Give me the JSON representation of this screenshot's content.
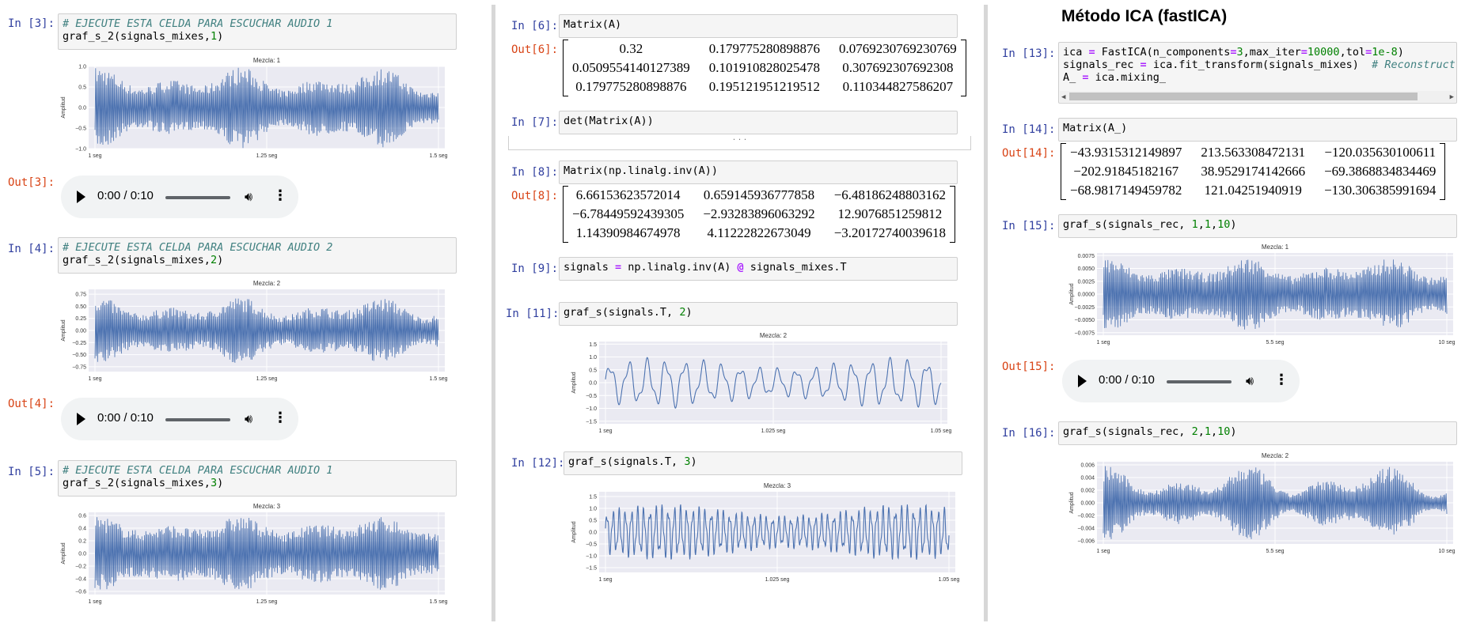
{
  "cells": {
    "c3": {
      "in": "In [3]:",
      "out": "Out[3]:",
      "comment": "# EJECUTE ESTA CELDA PARA ESCUCHAR AUDIO 1",
      "code_a": "graf_s_2(signals_mixes,",
      "arg": "1",
      "code_b": ")"
    },
    "c4": {
      "in": "In [4]:",
      "out": "Out[4]:",
      "comment": "# EJECUTE ESTA CELDA PARA ESCUCHAR AUDIO 2",
      "code_a": "graf_s_2(signals_mixes,",
      "arg": "2",
      "code_b": ")"
    },
    "c5": {
      "in": "In [5]:",
      "comment": "# EJECUTE ESTA CELDA PARA ESCUCHAR AUDIO 1",
      "code_a": "graf_s_2(signals_mixes,",
      "arg": "3",
      "code_b": ")"
    },
    "c6": {
      "in": "In [6]:",
      "out": "Out[6]:",
      "code": "Matrix(A)"
    },
    "c7": {
      "in": "In [7]:",
      "code": "det(Matrix(A))",
      "collapsed": "· · ·"
    },
    "c8": {
      "in": "In [8]:",
      "out": "Out[8]:",
      "code": "Matrix(np.linalg.inv(A))"
    },
    "c9": {
      "in": "In [9]:",
      "code_a": "signals ",
      "eq": "=",
      "code_b": " np.linalg.inv(A) ",
      "at": "@",
      "code_c": " signals_mixes.T"
    },
    "c11": {
      "in": "In [11]:",
      "code_a": "graf_s(signals.T, ",
      "arg": "2",
      "code_b": ")"
    },
    "c12": {
      "in": "In [12]:",
      "code_a": "graf_s(signals.T, ",
      "arg": "3",
      "code_b": ")"
    },
    "c13": {
      "in": "In [13]:",
      "l1_a": "ica ",
      "l1_eq": "=",
      "l1_b": " FastICA(n_components",
      "l1_eq2": "=",
      "l1_n1": "3",
      "l1_c": ",max_iter",
      "l1_eq3": "=",
      "l1_n2": "10000",
      "l1_d": ",tol",
      "l1_eq4": "=",
      "l1_n3": "1e-8",
      "l1_e": ")",
      "l2_a": "signals_rec ",
      "l2_eq": "=",
      "l2_b": " ica.fit_transform(signals_mixes)  ",
      "l2_cm": "# Reconstruct signals",
      "l3_a": "A_ ",
      "l3_eq": "=",
      "l3_b": " ica.mixing_"
    },
    "c14": {
      "in": "In [14]:",
      "out": "Out[14]:",
      "code": "Matrix(A_)"
    },
    "c15": {
      "in": "In [15]:",
      "out": "Out[15]:",
      "code_a": "graf_s(signals_rec, ",
      "a1": "1",
      "s1": ",",
      "a2": "1",
      "s2": ",",
      "a3": "10",
      "code_b": ")"
    },
    "c16": {
      "in": "In [16]:",
      "code_a": "graf_s(signals_rec, ",
      "a1": "2",
      "s1": ",",
      "a2": "1",
      "s2": ",",
      "a3": "10",
      "code_b": ")"
    }
  },
  "section_title": "Método ICA (fastICA)",
  "audio": {
    "time": "0:00 / 0:10",
    "play_icon": "play-icon",
    "volume_icon": "volume-icon",
    "more_icon": "more-vert-icon",
    "progress": 0
  },
  "matrices": {
    "A": [
      [
        "0.32",
        "0.179775280898876",
        "0.0769230769230769"
      ],
      [
        "0.0509554140127389",
        "0.101910828025478",
        "0.307692307692308"
      ],
      [
        "0.179775280898876",
        "0.195121951219512",
        "0.110344827586207"
      ]
    ],
    "invA": [
      [
        "6.66153623572014",
        "0.659145936777858",
        "−6.48186248803162"
      ],
      [
        "−6.78449592439305",
        "−2.93283896063292",
        "12.9076851259812"
      ],
      [
        "1.14390984674978",
        "4.11222822673049",
        "−3.20172740039618"
      ]
    ],
    "A_": [
      [
        "−43.9315312149897",
        "213.563308472131",
        "−120.035630100611"
      ],
      [
        "−202.91845182167",
        "38.9529174142666",
        "−69.3868834834469"
      ],
      [
        "−68.9817149459782",
        "121.04251940919",
        "−130.306385991694"
      ]
    ]
  },
  "colors": {
    "plot_bg": "#eaeaf2",
    "line": "#4c72b0",
    "grid": "#ffffff",
    "in_prompt": "#303f9f",
    "out_prompt": "#d84315"
  },
  "chart_data": [
    {
      "type": "line",
      "title": "Mezcla: 1",
      "ylabel": "Amplitud",
      "yticks": [
        "1.0",
        "0.5",
        "0.0",
        "−0.5",
        "−1.0"
      ],
      "ylim": [
        -1.0,
        1.0
      ],
      "xticks": [
        "1 seg",
        "1.25 seg",
        "1.5 seg"
      ],
      "dense": true,
      "amp": 0.6,
      "amp_range": [
        0.35,
        1.0
      ]
    },
    {
      "type": "line",
      "title": "Mezcla: 2",
      "ylabel": "Amplitud",
      "yticks": [
        "0.75",
        "0.50",
        "0.25",
        "0.00",
        "−0.25",
        "−0.50",
        "−0.75"
      ],
      "ylim": [
        -0.85,
        0.85
      ],
      "xticks": [
        "1 seg",
        "1.25 seg",
        "1.5 seg"
      ],
      "dense": true,
      "amp": 0.42,
      "amp_range": [
        0.25,
        0.7
      ]
    },
    {
      "type": "line",
      "title": "Mezcla: 3",
      "ylabel": "Amplitud",
      "yticks": [
        "0.6",
        "0.4",
        "0.2",
        "0.0",
        "−0.2",
        "−0.4",
        "−0.6"
      ],
      "ylim": [
        -0.65,
        0.65
      ],
      "xticks": [
        "1 seg",
        "1.25 seg",
        "1.5 seg"
      ],
      "dense": true,
      "amp": 0.4,
      "amp_range": [
        0.3,
        0.6
      ]
    },
    {
      "type": "line",
      "title": "Mezcla: 2",
      "ylabel": "Amplitud",
      "yticks": [
        "1.5",
        "1.0",
        "0.5",
        "0.0",
        "−0.5",
        "−1.0",
        "−1.5"
      ],
      "ylim": [
        -1.6,
        1.6
      ],
      "xticks": [
        "1 seg",
        "1.025 seg",
        "1.05 seg"
      ],
      "dense": false,
      "waves": 18,
      "amp": 1.0
    },
    {
      "type": "line",
      "title": "Mezcla: 3",
      "ylabel": "Amplitud",
      "yticks": [
        "1.5",
        "1.0",
        "0.5",
        "0.0",
        "−0.5",
        "−1.0",
        "−1.5"
      ],
      "ylim": [
        -1.7,
        1.7
      ],
      "xticks": [
        "1 seg",
        "1.025 seg",
        "1.05 seg"
      ],
      "dense": false,
      "waves": 56,
      "amp": 1.2
    },
    {
      "type": "line",
      "title": "Mezcla: 1",
      "ylabel": "Amplitud",
      "yticks": [
        "0.0075",
        "0.0050",
        "0.0025",
        "0.0000",
        "−0.0025",
        "−0.0050",
        "−0.0075"
      ],
      "ylim": [
        -0.008,
        0.008
      ],
      "xticks": [
        "1 seg",
        "5.5 seg",
        "10 seg"
      ],
      "dense": true,
      "amp": 0.0045,
      "amp_range": [
        0.003,
        0.0072
      ]
    },
    {
      "type": "line",
      "title": "Mezcla: 2",
      "ylabel": "Amplitud",
      "yticks": [
        "0.006",
        "0.004",
        "0.002",
        "0.000",
        "−0.002",
        "−0.004",
        "−0.006"
      ],
      "ylim": [
        -0.0065,
        0.0065
      ],
      "xticks": [
        "1 seg",
        "5.5 seg",
        "10 seg"
      ],
      "dense": true,
      "amp": 0.003,
      "amp_range": [
        0.0008,
        0.006
      ]
    }
  ]
}
